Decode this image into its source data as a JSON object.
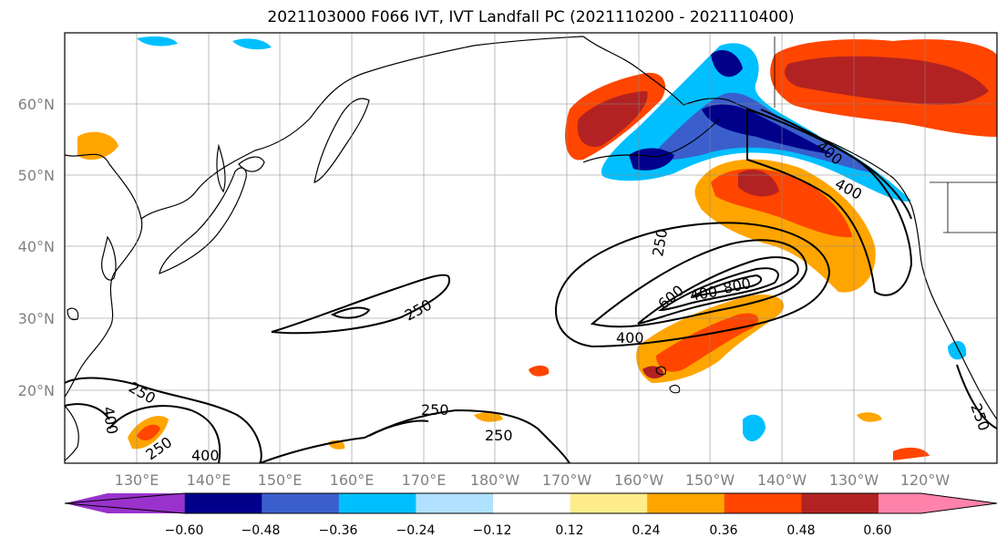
{
  "title": "2021103000 F066 IVT, IVT Landfall PC (2021110200 - 2021110400)",
  "lat_labels": [
    "60°N",
    "50°N",
    "40°N",
    "30°N",
    "20°N"
  ],
  "lon_labels": [
    "130°E",
    "140°E",
    "150°E",
    "160°E",
    "170°E",
    "180°W",
    "170°W",
    "160°W",
    "150°W",
    "140°W",
    "130°W",
    "120°W"
  ],
  "contour_labels": [
    "250",
    "250",
    "400",
    "600",
    "400",
    "800",
    "400",
    "400",
    "250",
    "250",
    "400",
    "250",
    "250",
    "250",
    "250"
  ],
  "colorbar": {
    "ticks": [
      "−0.60",
      "−0.48",
      "−0.36",
      "−0.24",
      "−0.12",
      "0.12",
      "0.24",
      "0.36",
      "0.48",
      "0.60"
    ],
    "colors": [
      "#9932cc",
      "#00008b",
      "#3a5fcd",
      "#00bfff",
      "#b0e2ff",
      "#ffffff",
      "#ffec8b",
      "#ffa500",
      "#ff4500",
      "#b22222",
      "#ff82ab"
    ]
  }
}
